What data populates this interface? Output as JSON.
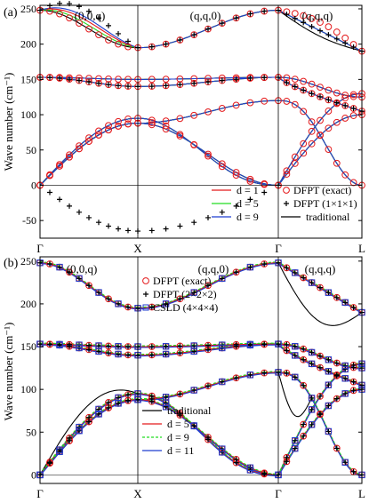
{
  "chart_data": [
    {
      "type": "line",
      "panel_label": "(a)",
      "ylabel": "Wave number (cm⁻¹)",
      "ylim": [
        -75,
        255
      ],
      "yticks": [
        -50,
        0,
        50,
        100,
        150,
        200,
        250
      ],
      "path_segments": [
        {
          "label": "(0,0,q)",
          "from": "Γ",
          "to": "X"
        },
        {
          "label": "(q,q,0)",
          "from": "X",
          "to": "Γ"
        },
        {
          "label": "(q,q,q)",
          "from": "Γ",
          "to": "L"
        }
      ],
      "xtick_labels": [
        "Γ",
        "X",
        "Γ",
        "L"
      ],
      "legend": [
        {
          "name": "d = 1",
          "color": "#e41a1c",
          "style": "line"
        },
        {
          "name": "d = 5",
          "color": "#22dd22",
          "style": "line"
        },
        {
          "name": "d = 9",
          "color": "#1f3fd0",
          "style": "line"
        },
        {
          "name": "DFPT (exact)",
          "color": "#e41a1c",
          "style": "circle"
        },
        {
          "name": "DFPT (1×1×1)",
          "color": "#000000",
          "style": "plus"
        },
        {
          "name": "traditional",
          "color": "#000000",
          "style": "line"
        }
      ],
      "branches": [
        {
          "segment": "(0,0,q)",
          "values": [
            248,
            230,
            205,
            195
          ]
        },
        {
          "segment": "(0,0,q)",
          "values": [
            153,
            150,
            145,
            140
          ]
        },
        {
          "segment": "(0,0,q)",
          "values": [
            0,
            70,
            98,
            90
          ]
        },
        {
          "segment": "(q,q,0)",
          "values": [
            195,
            210,
            235,
            248
          ]
        },
        {
          "segment": "(q,q,0)",
          "values": [
            150,
            150,
            152,
            153
          ]
        },
        {
          "segment": "(q,q,0)",
          "values": [
            120,
            115,
            110,
            0
          ]
        },
        {
          "segment": "(q,q,q)",
          "values": [
            248,
            235,
            205,
            195
          ]
        },
        {
          "segment": "(q,q,q)",
          "values": [
            153,
            150,
            140,
            130
          ]
        },
        {
          "segment": "(q,q,q)",
          "values": [
            0,
            55,
            90,
            100
          ]
        }
      ],
      "dfpt_1x1x1_points": [
        {
          "segment": "(0,0,q)",
          "values": [
            -10,
            -40,
            -60,
            -65
          ]
        },
        {
          "segment": "(q,q,0)",
          "values": [
            -65,
            -40,
            0,
            30
          ]
        }
      ]
    },
    {
      "type": "line",
      "panel_label": "(b)",
      "ylabel": "Wave number (cm⁻¹)",
      "ylim": [
        -10,
        255
      ],
      "yticks": [
        0,
        50,
        100,
        150,
        200,
        250
      ],
      "path_segments": [
        {
          "label": "(0,0,q)",
          "from": "Γ",
          "to": "X"
        },
        {
          "label": "(q,q,0)",
          "from": "X",
          "to": "Γ"
        },
        {
          "label": "(q,q,q)",
          "from": "Γ",
          "to": "L"
        }
      ],
      "xtick_labels": [
        "Γ",
        "X",
        "Γ",
        "L"
      ],
      "legend_top": [
        {
          "name": "DFPT (exact)",
          "color": "#e41a1c",
          "style": "circle"
        },
        {
          "name": "DFPT (2×2×2)",
          "color": "#000000",
          "style": "plus"
        },
        {
          "name": "CSLD (4×4×4)",
          "color": "#1f3fd0",
          "style": "square"
        }
      ],
      "legend_bottom": [
        {
          "name": "traditional",
          "color": "#000000",
          "style": "line"
        },
        {
          "name": "d = 5",
          "color": "#e41a1c",
          "style": "line"
        },
        {
          "name": "d = 9",
          "color": "#22dd22",
          "style": "dashed"
        },
        {
          "name": "d = 11",
          "color": "#1f3fd0",
          "style": "line"
        }
      ]
    }
  ]
}
